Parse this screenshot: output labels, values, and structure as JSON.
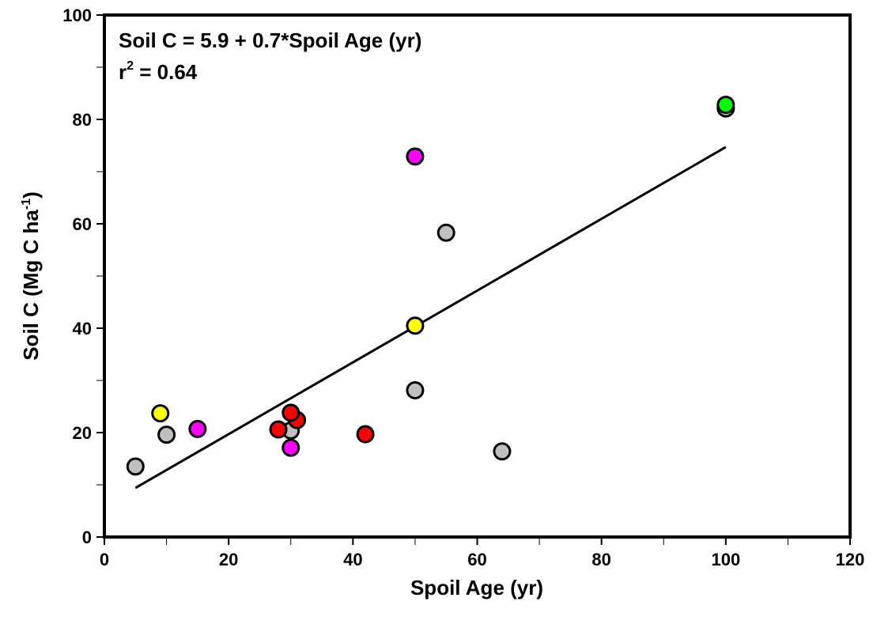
{
  "chart_data": {
    "type": "scatter",
    "xlabel": "Spoil Age (yr)",
    "ylabel": {
      "text": "Soil C (Mg C ha",
      "sup": "-1",
      "end": ")"
    },
    "annotation": [
      "Soil C = 5.9 + 0.7*Spoil Age (yr)",
      {
        "text": "r",
        "sup": "2",
        "end": " = 0.64"
      }
    ],
    "xlim": [
      0,
      120
    ],
    "xticks": [
      0,
      20,
      40,
      60,
      80,
      100,
      120
    ],
    "xminor_ticks": [
      10,
      30,
      50,
      70,
      90,
      110
    ],
    "ylim": [
      0,
      100
    ],
    "yticks": [
      0,
      20,
      40,
      60,
      80,
      100
    ],
    "yminor_ticks": [
      10,
      30,
      50,
      70,
      90
    ],
    "series": [
      {
        "color": "#c0c0c0",
        "x": [
          100,
          5,
          10,
          30,
          50,
          55,
          64
        ],
        "values": [
          82.1,
          13.5,
          19.6,
          20.4,
          28.1,
          58.3,
          16.4
        ]
      },
      {
        "color": "#ffff00",
        "x": [
          9,
          50
        ],
        "values": [
          23.7,
          40.5
        ]
      },
      {
        "color": "#ff0000",
        "x": [
          28,
          31,
          30,
          42
        ],
        "values": [
          20.6,
          22.4,
          23.8,
          19.7
        ]
      },
      {
        "color": "#ff00ff",
        "x": [
          15,
          30,
          50
        ],
        "values": [
          20.7,
          17.1,
          72.9
        ]
      },
      {
        "color": "#00ff00",
        "x": [
          100
        ],
        "values": [
          82.8
        ]
      }
    ],
    "fit_line": {
      "color": "#000000",
      "x": [
        5,
        100
      ],
      "values": [
        9.4,
        74.7
      ]
    }
  }
}
